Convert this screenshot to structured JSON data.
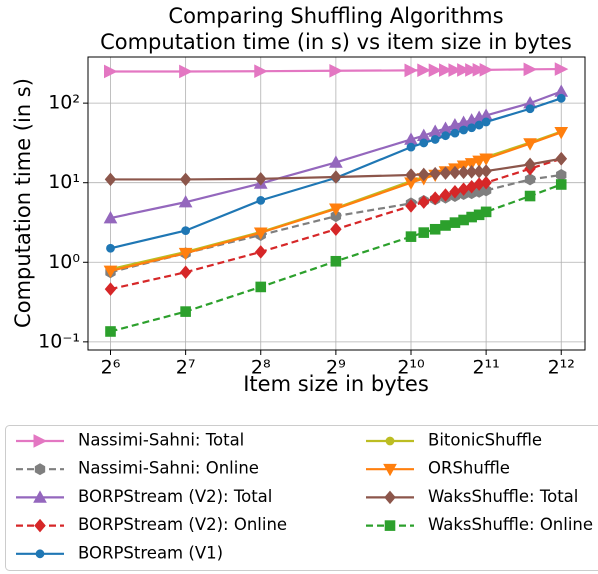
{
  "chart_data": {
    "type": "line",
    "title": "Comparing Shuffling Algorithms",
    "subtitle": "Computation time (in s) vs item size in bytes",
    "x_label": "Item size in bytes",
    "y_label": "Computation time (in s)",
    "xscale": "log",
    "xbase": 2,
    "yscale": "log",
    "grid": true,
    "legend_loc": "below",
    "x": [
      64,
      128,
      256,
      512,
      1024,
      1152,
      1280,
      1408,
      1536,
      1664,
      1792,
      1920,
      2048,
      3072,
      4096
    ],
    "xlim": [
      52,
      5100
    ],
    "ylim": [
      0.079,
      380
    ],
    "xticks": [
      {
        "value": 64,
        "label": "2⁶"
      },
      {
        "value": 128,
        "label": "2⁷"
      },
      {
        "value": 256,
        "label": "2⁸"
      },
      {
        "value": 512,
        "label": "2⁹"
      },
      {
        "value": 1024,
        "label": "2¹⁰"
      },
      {
        "value": 2048,
        "label": "2¹¹"
      },
      {
        "value": 4096,
        "label": "2¹²"
      }
    ],
    "yticks": [
      {
        "value": 0.1,
        "label": "10⁻¹"
      },
      {
        "value": 1,
        "label": "10⁰"
      },
      {
        "value": 10,
        "label": "10¹"
      },
      {
        "value": 100,
        "label": "10²"
      }
    ],
    "series": [
      {
        "name": "Nassimi-Sahni: Total",
        "color": "#e377c2",
        "marker": "triangle-right",
        "linestyle": "solid",
        "values": [
          250,
          250,
          252,
          255,
          258,
          259,
          259,
          260,
          260,
          261,
          261,
          262,
          262,
          266,
          268
        ]
      },
      {
        "name": "Nassimi-Sahni: Online",
        "color": "#7f7f7f",
        "marker": "hexagon",
        "linestyle": "dashed",
        "values": [
          0.75,
          1.3,
          2.2,
          3.8,
          5.5,
          5.9,
          6.2,
          6.5,
          6.8,
          7.2,
          7.4,
          7.7,
          8,
          11,
          12.5
        ]
      },
      {
        "name": "BORPStream (V2): Total",
        "color": "#9467bd",
        "marker": "triangle-up",
        "linestyle": "solid",
        "values": [
          3.6,
          5.7,
          9.8,
          18,
          35,
          39,
          44,
          48,
          53,
          57,
          61,
          66,
          70,
          100,
          140
        ]
      },
      {
        "name": "BORPStream (V2): Online",
        "color": "#d62728",
        "marker": "diamond",
        "linestyle": "dashed",
        "values": [
          0.46,
          0.75,
          1.35,
          2.6,
          5.1,
          5.7,
          6.4,
          7,
          7.7,
          8.3,
          8.9,
          9.6,
          10,
          15,
          20
        ]
      },
      {
        "name": "BORPStream (V1)",
        "color": "#1f77b4",
        "marker": "circle",
        "linestyle": "solid",
        "values": [
          1.5,
          2.5,
          6,
          11.5,
          28,
          31.6,
          35,
          39,
          42,
          46,
          49,
          53,
          58,
          85,
          115
        ]
      },
      {
        "name": "BitonicShuffle",
        "color": "#bcbd22",
        "marker": "circle",
        "linestyle": "solid",
        "values": [
          0.82,
          1.35,
          2.4,
          4.8,
          10.5,
          11.8,
          13.1,
          14.4,
          15.8,
          17.1,
          18.4,
          19.7,
          21,
          32,
          44
        ]
      },
      {
        "name": "ORShuffle",
        "color": "#ff7f0e",
        "marker": "triangle-down",
        "linestyle": "solid",
        "values": [
          0.78,
          1.3,
          2.35,
          4.7,
          10,
          11.3,
          12.5,
          13.8,
          15,
          16.3,
          17.5,
          18.8,
          20,
          31,
          43
        ]
      },
      {
        "name": "WaksShuffle: Total",
        "color": "#8c564b",
        "marker": "diamond",
        "linestyle": "solid",
        "values": [
          11,
          11,
          11.2,
          11.8,
          12.5,
          12.7,
          13,
          13.2,
          13.4,
          13.5,
          13.7,
          13.8,
          14,
          17,
          20
        ]
      },
      {
        "name": "WaksShuffle: Online",
        "color": "#2ca02c",
        "marker": "square",
        "linestyle": "dashed",
        "values": [
          0.135,
          0.24,
          0.49,
          1.03,
          2.1,
          2.36,
          2.6,
          2.9,
          3.15,
          3.4,
          3.7,
          3.95,
          4.3,
          6.8,
          9.5
        ]
      }
    ]
  }
}
